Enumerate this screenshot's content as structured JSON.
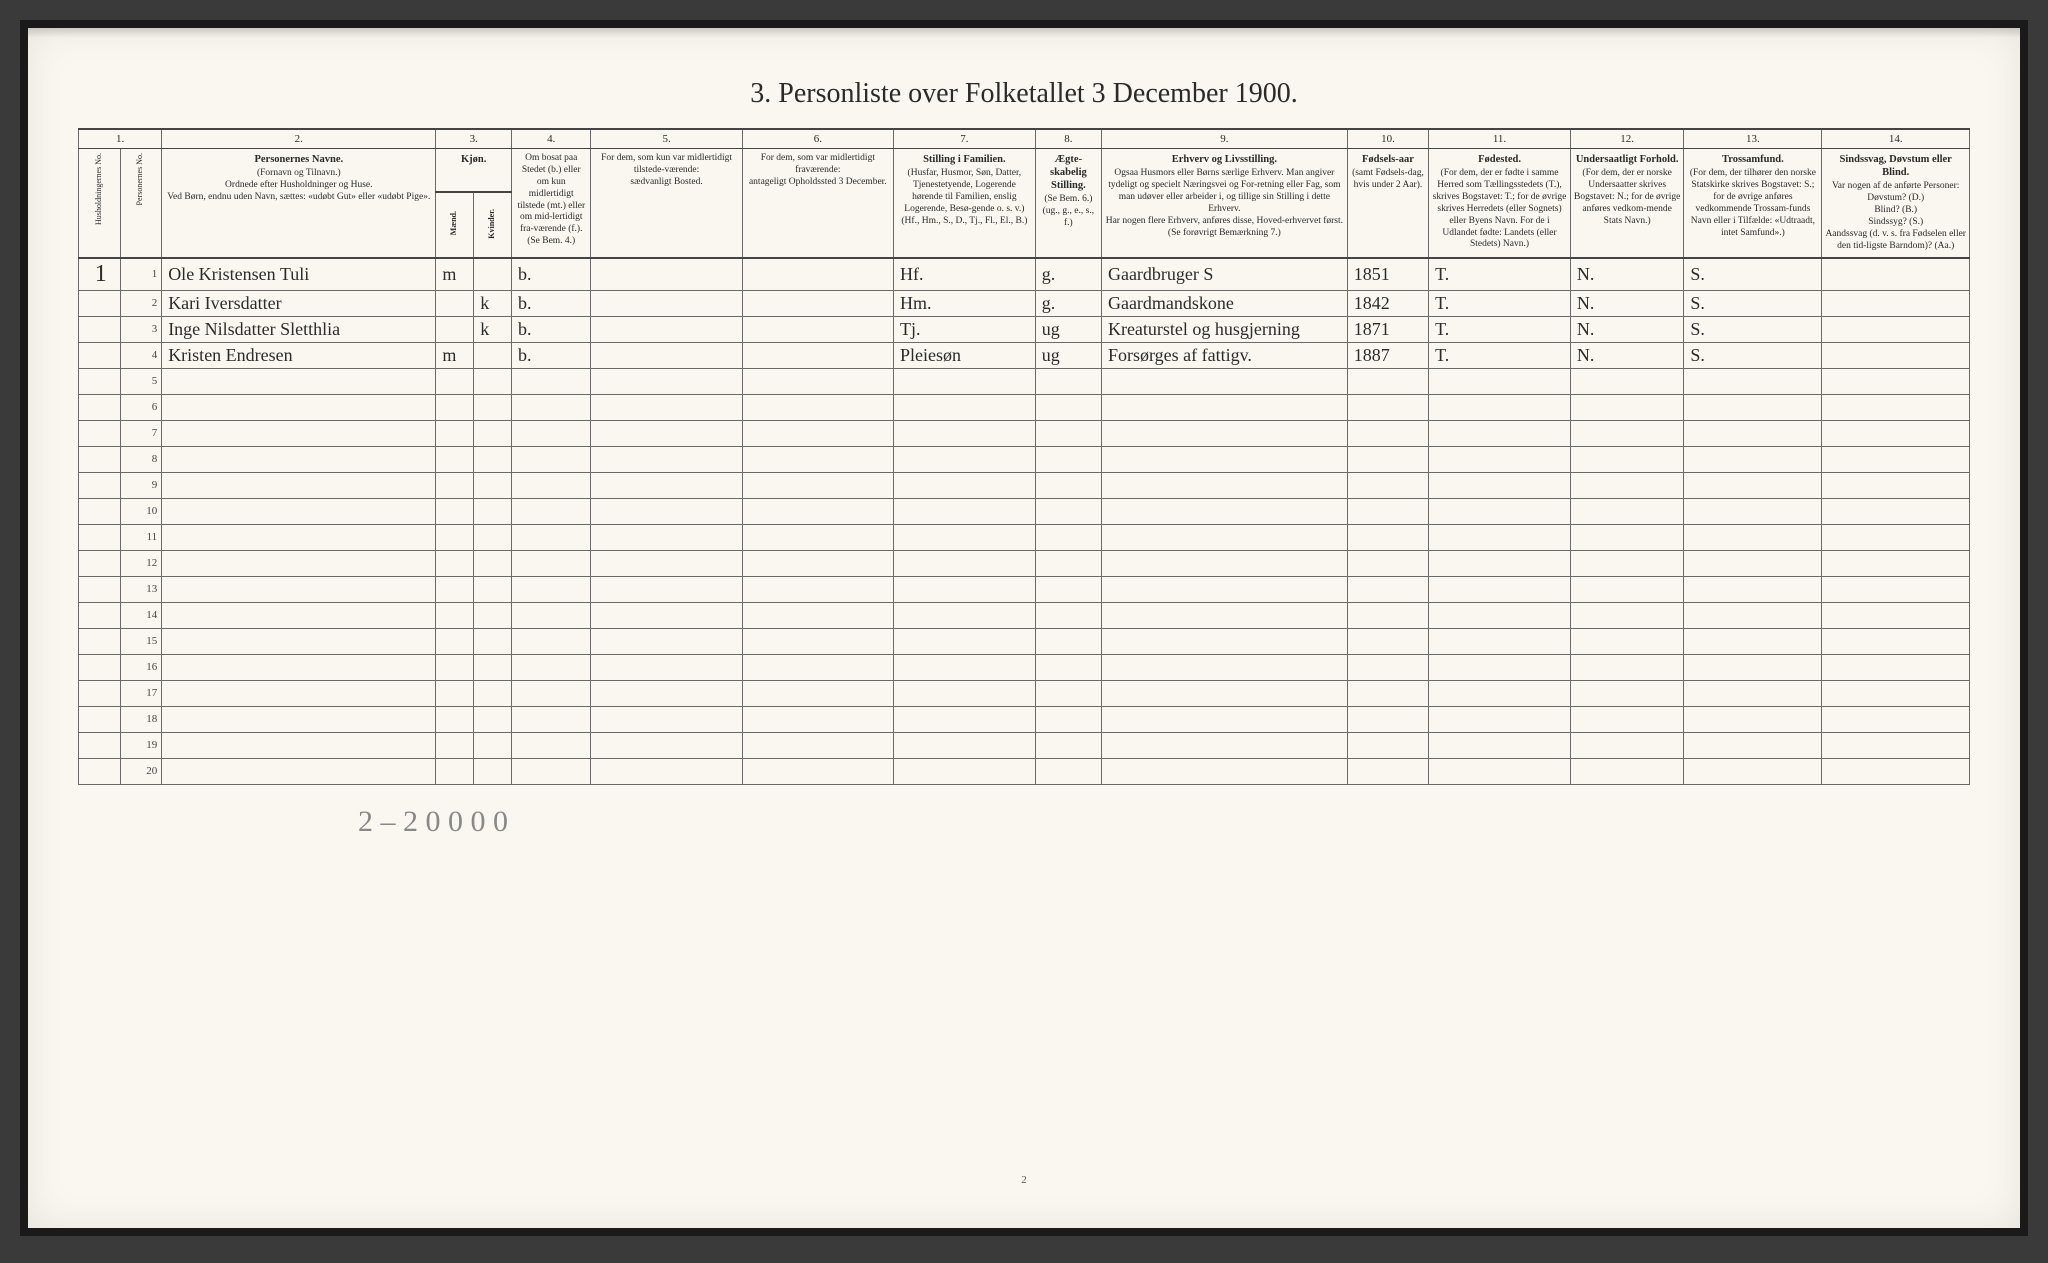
{
  "title": "3.  Personliste over Folketallet 3 December 1900.",
  "column_numbers": [
    "1.",
    "2.",
    "3.",
    "4.",
    "5.",
    "6.",
    "7.",
    "8.",
    "9.",
    "10.",
    "11.",
    "12.",
    "13.",
    "14."
  ],
  "headers": {
    "c1": "Husholdningernes No.",
    "c1b": "Personernes No.",
    "c2_bold": "Personernes Navne.",
    "c2_sub": "(Fornavn og Tilnavn.)\nOrdnede efter Husholdninger og Huse.\nVed Børn, endnu uden Navn, sættes: «udøbt Gut» eller «udøbt Pige».",
    "c3_bold": "Kjøn.",
    "c3_m": "Mænd.",
    "c3_k": "Kvinder.",
    "c3_mk": "m.  k.",
    "c4": "Om bosat paa Stedet (b.) eller om kun midlertidigt tilstede (mt.) eller om mid-lertidigt fra-værende (f.).\n(Se Bem. 4.)",
    "c5": "For dem, som kun var midlertidigt tilstede-værende:\nsædvanligt Bosted.",
    "c6": "For dem, som var midlertidigt fraværende:\nantageligt Opholdssted 3 December.",
    "c7_bold": "Stilling i Familien.",
    "c7_sub": "(Husfar, Husmor, Søn, Datter, Tjenestetyende, Logerende hørende til Familien, enslig Logerende, Besø-gende o. s. v.)\n(Hf., Hm., S., D., Tj., Fl., El., B.)",
    "c8_bold": "Ægte-skabelig Stilling.",
    "c8_sub": "(Se Bem. 6.)\n(ug., g., e., s., f.)",
    "c9_bold": "Erhverv og Livsstilling.",
    "c9_sub": "Ogsaa Husmors eller Børns særlige Erhverv. Man angiver tydeligt og specielt Næringsvei og For-retning eller Fag, som man udøver eller arbeider i, og tillige sin Stilling i dette Erhverv.\nHar nogen flere Erhverv, anføres disse, Hoved-erhvervet først.\n(Se forøvrigt Bemærkning 7.)",
    "c10_bold": "Fødsels-aar",
    "c10_sub": "(samt Fødsels-dag, hvis under 2 Aar).",
    "c11_bold": "Fødested.",
    "c11_sub": "(For dem, der er fødte i samme Herred som Tællingsstedets (T.), skrives Bogstavet: T.; for de øvrige skrives Herredets (eller Sognets) eller Byens Navn. For de i Udlandet fødte: Landets (eller Stedets) Navn.)",
    "c12_bold": "Undersaatligt Forhold.",
    "c12_sub": "(For dem, der er norske Undersaatter skrives Bogstavet: N.; for de øvrige anføres vedkom-mende Stats Navn.)",
    "c13_bold": "Trossamfund.",
    "c13_sub": "(For dem, der tilhører den norske Statskirke skrives Bogstavet: S.; for de øvrige anføres vedkommende Trossam-funds Navn eller i Tilfælde: «Udtraadt, intet Samfund».)",
    "c14_bold": "Sindssvag, Døvstum eller Blind.",
    "c14_sub": "Var nogen af de anførte Personer:\nDøvstum? (D.)\nBlind? (B.)\nSindssyg? (S.)\nAandssvag (d. v. s. fra Fødselen eller den tid-ligste Barndom)? (Aa.)"
  },
  "column_widths_pct": [
    2.2,
    2.2,
    14.5,
    2.0,
    2.0,
    4.2,
    8.0,
    8.0,
    7.5,
    3.5,
    13.0,
    4.3,
    7.5,
    6.0,
    7.3,
    7.8
  ],
  "rows": [
    {
      "num": "1",
      "household": "1",
      "name": "Ole Kristensen Tuli",
      "sex": "m",
      "res": "b.",
      "c5": "",
      "c6": "",
      "fam": "Hf.",
      "mar": "g.",
      "occ": "Gaardbruger  S",
      "year": "1851",
      "birthplace": "T.",
      "nat": "N.",
      "faith": "S.",
      "dis": ""
    },
    {
      "num": "2",
      "household": "",
      "name": "Kari Iversdatter",
      "sex": "k",
      "res": "b.",
      "c5": "",
      "c6": "",
      "fam": "Hm.",
      "mar": "g.",
      "occ": "Gaardmandskone",
      "year": "1842",
      "birthplace": "T.",
      "nat": "N.",
      "faith": "S.",
      "dis": ""
    },
    {
      "num": "3",
      "household": "",
      "name": "Inge Nilsdatter Sletthlia",
      "sex": "k",
      "res": "b.",
      "c5": "",
      "c6": "",
      "fam": "Tj.",
      "mar": "ug",
      "occ": "Kreaturstel og husgjerning",
      "year": "1871",
      "birthplace": "T.",
      "nat": "N.",
      "faith": "S.",
      "dis": ""
    },
    {
      "num": "4",
      "household": "",
      "name": "Kristen Endresen",
      "sex": "m",
      "res": "b.",
      "c5": "",
      "c6": "",
      "fam": "Pleiesøn",
      "mar": "ug",
      "occ": "Forsørges af fattigv.",
      "year": "1887",
      "birthplace": "T.",
      "nat": "N.",
      "faith": "S.",
      "dis": ""
    }
  ],
  "empty_rows_from": 5,
  "empty_rows_to": 20,
  "footer_handwriting": "2 – 2 0 0  0 0",
  "printed_page_num": "2",
  "colors": {
    "page_bg": "#f9f7f0",
    "ink": "#2a2a2a",
    "rule": "#6a6a6a",
    "outer": "#3a3a3a",
    "frame": "#1a1a1a"
  }
}
